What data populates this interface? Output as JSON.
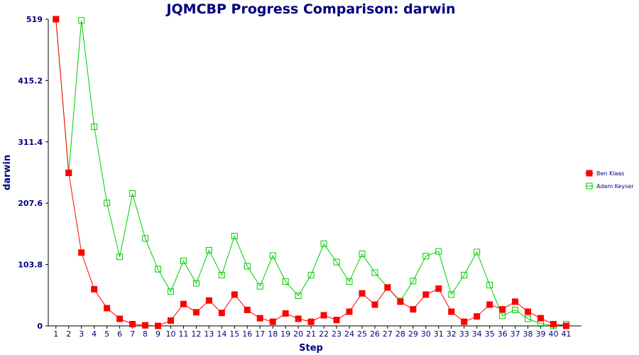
{
  "chart_data": {
    "type": "line",
    "title": "JQMCBP Progress Comparison: darwin",
    "xlabel": "Step",
    "ylabel": "darwin",
    "x": [
      1,
      2,
      3,
      4,
      5,
      6,
      7,
      8,
      9,
      10,
      11,
      12,
      13,
      14,
      15,
      16,
      17,
      18,
      19,
      20,
      21,
      22,
      23,
      24,
      25,
      26,
      27,
      28,
      29,
      30,
      31,
      32,
      33,
      34,
      35,
      36,
      37,
      38,
      39,
      40,
      41
    ],
    "xlim": [
      0.4,
      42.2
    ],
    "ylim": [
      0,
      519
    ],
    "yticks": [
      "0",
      "103.8",
      "207.6",
      "311.4",
      "415.2",
      "519"
    ],
    "legend_position": "right",
    "series": [
      {
        "name": "Ben Klaas",
        "color": "#ff0000",
        "marker": "filled-square",
        "values": [
          519,
          259,
          124,
          62,
          30,
          12,
          3,
          1,
          0,
          9,
          37,
          23,
          43,
          22,
          53,
          27,
          13,
          7,
          21,
          12,
          7,
          18,
          10,
          24,
          55,
          36,
          65,
          41,
          28,
          53,
          63,
          24,
          7,
          16,
          36,
          28,
          41,
          24,
          13,
          3,
          0
        ]
      },
      {
        "name": "Adam Keyser",
        "color": "#00cc00",
        "marker": "hollow-square",
        "values": [
          519,
          259,
          517,
          337,
          208,
          117,
          224,
          148,
          96,
          58,
          110,
          72,
          128,
          86,
          152,
          101,
          67,
          119,
          75,
          51,
          86,
          139,
          108,
          75,
          122,
          90,
          65,
          42,
          76,
          118,
          126,
          53,
          86,
          125,
          69,
          17,
          27,
          12,
          4,
          0,
          3
        ]
      }
    ]
  }
}
